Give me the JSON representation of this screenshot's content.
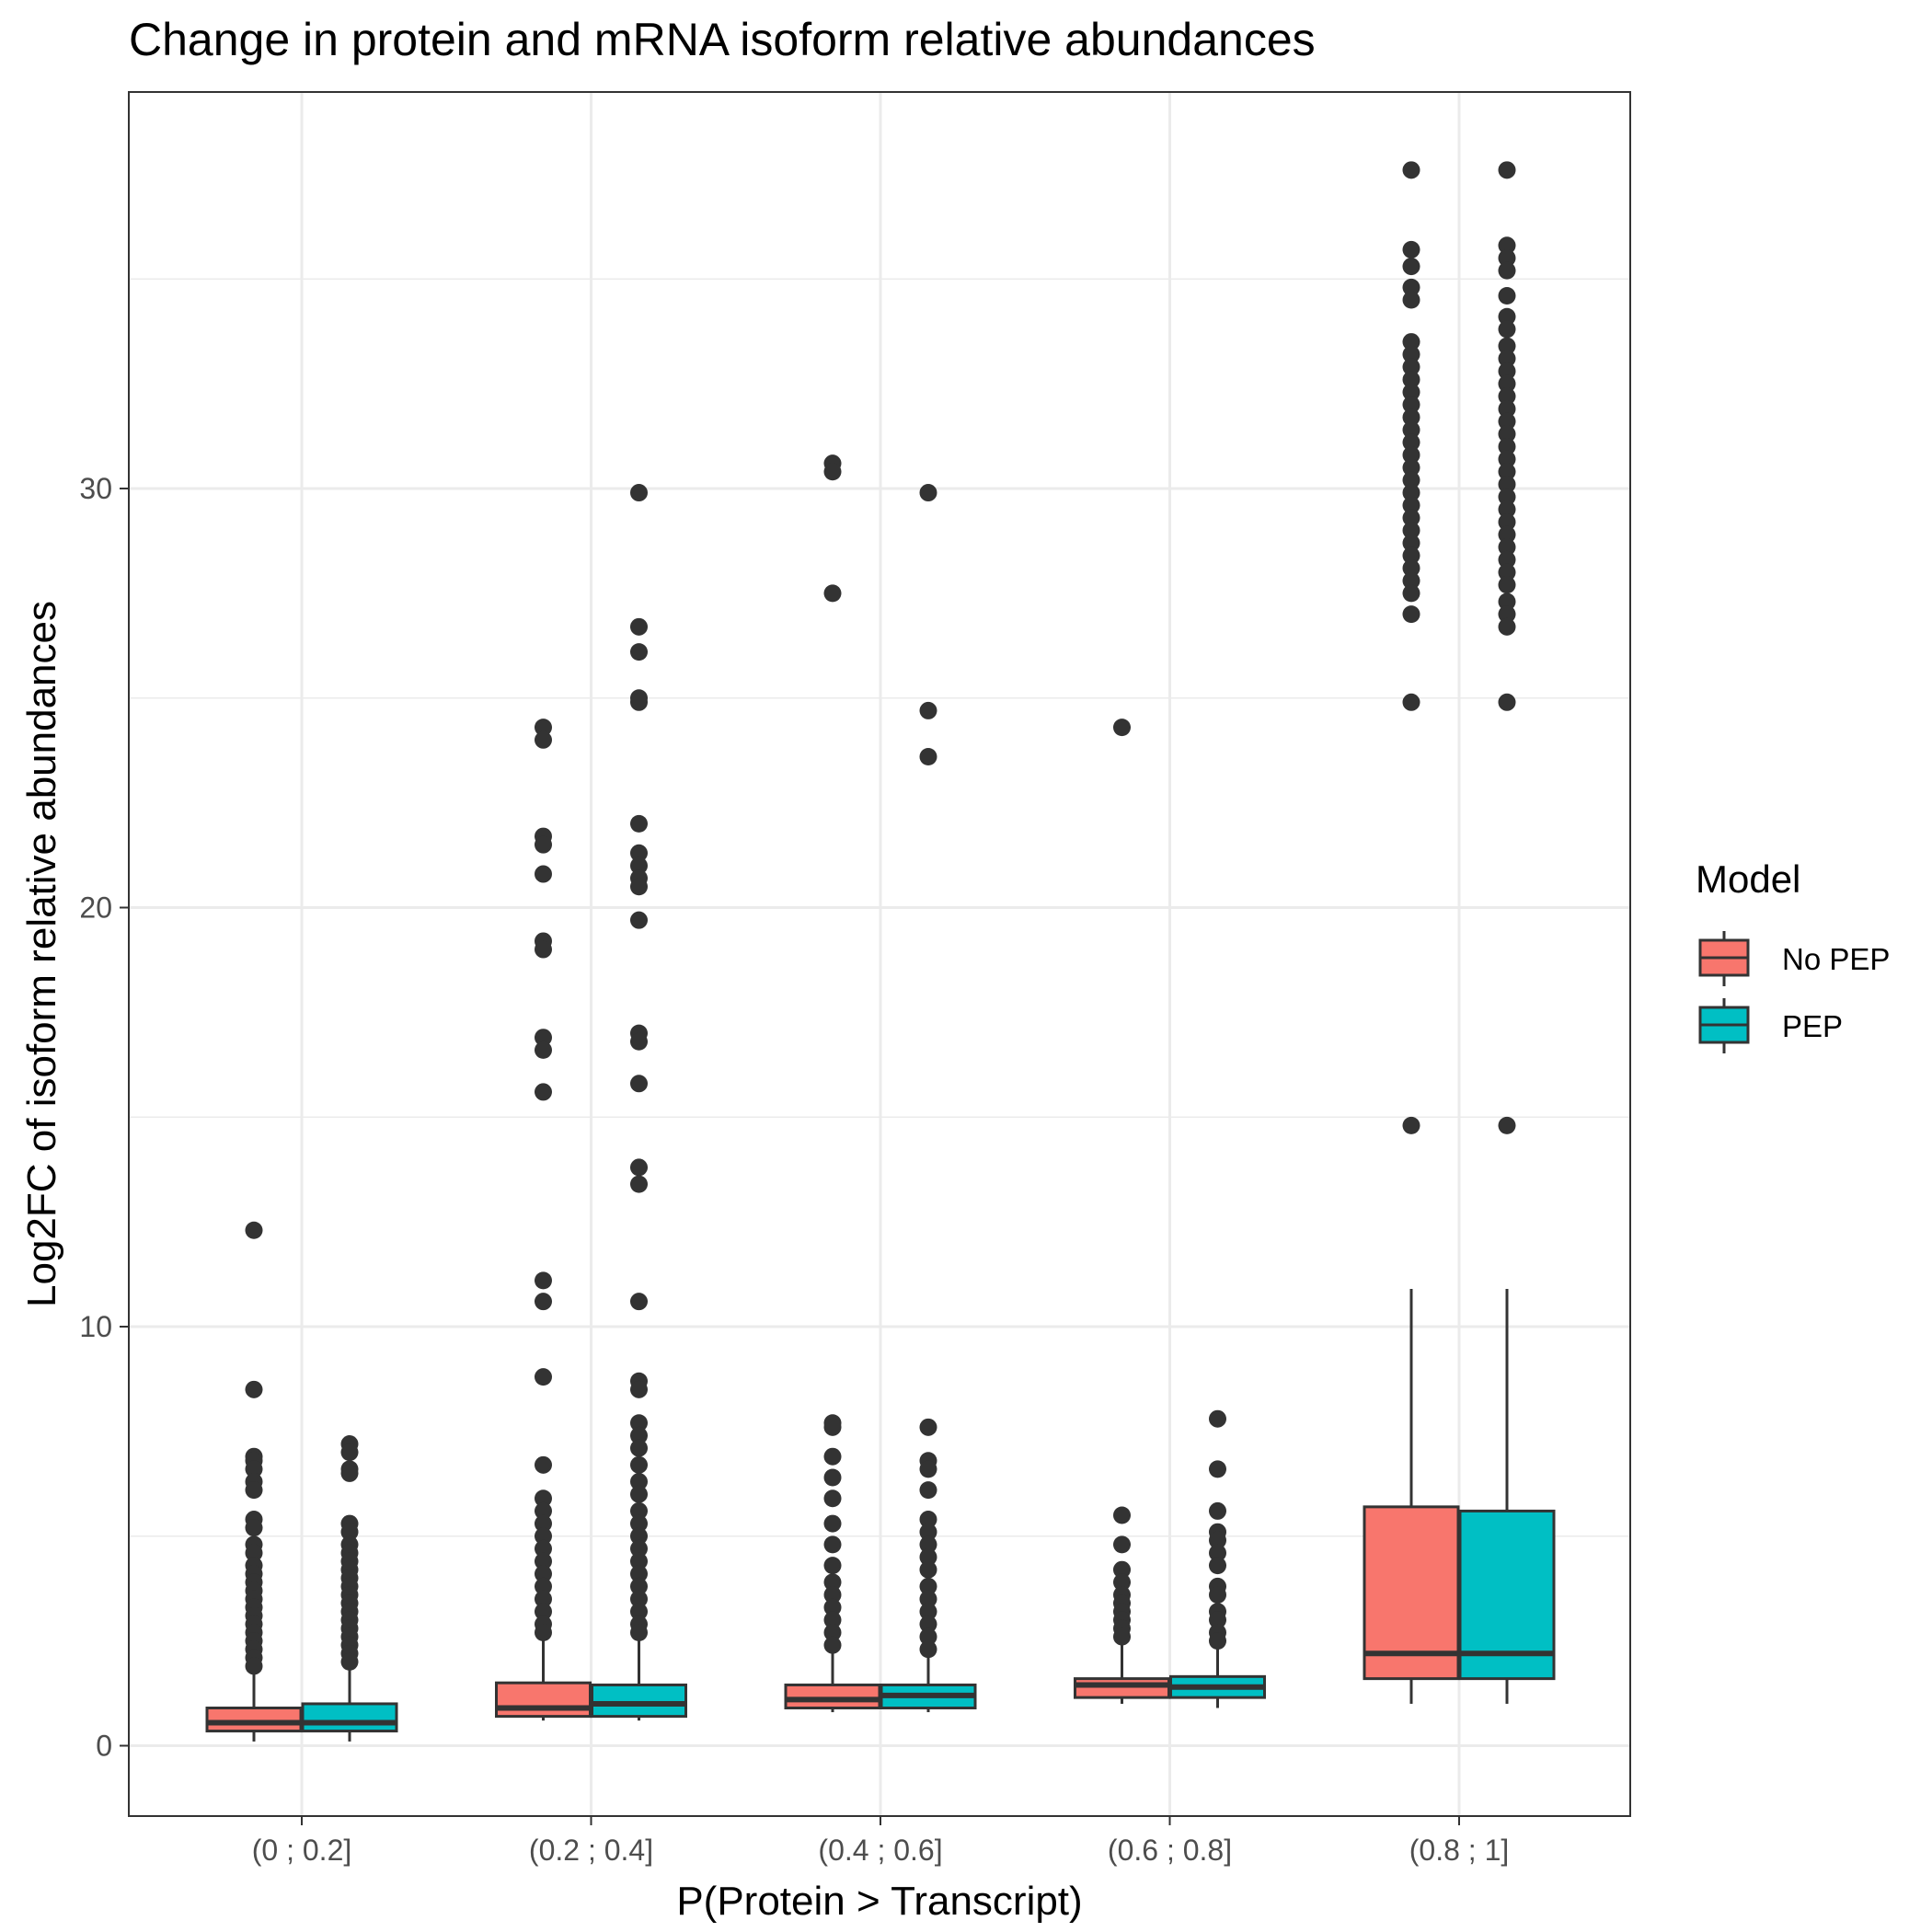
{
  "chart_data": {
    "type": "boxplot",
    "title": "Change in protein and mRNA isoform relative abundances",
    "xlabel": "P(Protein > Transcript)",
    "ylabel": "Log2FC of isoform relative abundances",
    "ylim": [
      -1.5,
      39.5
    ],
    "yticks": [
      0,
      10,
      20,
      30
    ],
    "grid": true,
    "legend_position": "right",
    "legend_title": "Model",
    "categories": [
      "(0 ; 0.2]",
      "(0.2 ; 0.4]",
      "(0.4 ; 0.6]",
      "(0.6 ; 0.8]",
      "(0.8 ; 1]"
    ],
    "series": [
      {
        "name": "No PEP",
        "color": "#F8766D",
        "boxes": [
          {
            "whisker_low": 0.1,
            "q1": 0.35,
            "median": 0.55,
            "q3": 0.9,
            "whisker_high": 1.8,
            "outliers": [
              12.3,
              8.5,
              6.9,
              6.8,
              6.6,
              6.3,
              6.1,
              5.4,
              5.2,
              4.8,
              4.6,
              4.3,
              4.1,
              3.9,
              3.7,
              3.5,
              3.3,
              3.1,
              2.9,
              2.7,
              2.5,
              2.3,
              2.1,
              1.9
            ]
          },
          {
            "whisker_low": 0.6,
            "q1": 0.7,
            "median": 0.9,
            "q3": 1.5,
            "whisker_high": 2.6,
            "outliers": [
              24.3,
              24.0,
              21.7,
              21.5,
              20.8,
              19.2,
              19.0,
              16.9,
              16.6,
              15.6,
              11.1,
              10.6,
              8.8,
              6.7,
              5.9,
              5.6,
              5.3,
              5.0,
              4.7,
              4.4,
              4.1,
              3.8,
              3.5,
              3.2,
              2.9,
              2.7
            ]
          },
          {
            "whisker_low": 0.8,
            "q1": 0.9,
            "median": 1.1,
            "q3": 1.45,
            "whisker_high": 2.2,
            "outliers": [
              30.6,
              30.4,
              27.5,
              7.7,
              7.6,
              6.9,
              6.4,
              5.9,
              5.3,
              4.8,
              4.3,
              3.9,
              3.6,
              3.3,
              3.0,
              2.7,
              2.4
            ]
          },
          {
            "whisker_low": 1.0,
            "q1": 1.15,
            "median": 1.45,
            "q3": 1.6,
            "whisker_high": 2.4,
            "outliers": [
              24.3,
              5.5,
              4.8,
              4.2,
              3.9,
              3.6,
              3.4,
              3.2,
              3.0,
              2.8,
              2.6
            ]
          },
          {
            "whisker_low": 1.0,
            "q1": 1.6,
            "median": 2.2,
            "q3": 5.7,
            "whisker_high": 10.9,
            "outliers": [
              37.6,
              35.7,
              35.3,
              34.8,
              34.5,
              33.5,
              33.2,
              32.9,
              32.6,
              32.3,
              32.0,
              31.7,
              31.4,
              31.1,
              30.8,
              30.5,
              30.2,
              29.9,
              29.6,
              29.3,
              29.0,
              28.7,
              28.4,
              28.1,
              27.8,
              27.5,
              27.0,
              24.9,
              14.8
            ]
          }
        ]
      },
      {
        "name": "PEP",
        "color": "#00BFC4",
        "boxes": [
          {
            "whisker_low": 0.1,
            "q1": 0.35,
            "median": 0.55,
            "q3": 1.0,
            "whisker_high": 1.9,
            "outliers": [
              7.2,
              7.0,
              6.6,
              6.5,
              5.3,
              5.1,
              4.8,
              4.6,
              4.4,
              4.2,
              4.0,
              3.8,
              3.6,
              3.4,
              3.2,
              3.0,
              2.8,
              2.6,
              2.4,
              2.2,
              2.0
            ]
          },
          {
            "whisker_low": 0.6,
            "q1": 0.7,
            "median": 1.0,
            "q3": 1.45,
            "whisker_high": 2.6,
            "outliers": [
              29.9,
              26.7,
              26.1,
              25.0,
              24.9,
              22.0,
              21.3,
              21.0,
              20.7,
              20.5,
              19.7,
              17.0,
              16.8,
              15.8,
              13.8,
              13.4,
              10.6,
              8.7,
              8.5,
              7.7,
              7.4,
              7.1,
              6.7,
              6.3,
              6.0,
              5.6,
              5.3,
              5.0,
              4.7,
              4.4,
              4.1,
              3.8,
              3.5,
              3.2,
              2.9,
              2.7
            ]
          },
          {
            "whisker_low": 0.8,
            "q1": 0.9,
            "median": 1.2,
            "q3": 1.45,
            "whisker_high": 2.1,
            "outliers": [
              29.9,
              24.7,
              23.6,
              7.6,
              6.8,
              6.6,
              6.1,
              5.4,
              5.1,
              4.8,
              4.5,
              4.2,
              3.8,
              3.5,
              3.2,
              2.9,
              2.6,
              2.3
            ]
          },
          {
            "whisker_low": 0.9,
            "q1": 1.15,
            "median": 1.4,
            "q3": 1.65,
            "whisker_high": 2.4,
            "outliers": [
              7.8,
              6.6,
              5.6,
              5.1,
              4.9,
              4.6,
              4.3,
              3.8,
              3.6,
              3.2,
              3.0,
              2.7,
              2.5
            ]
          },
          {
            "whisker_low": 1.0,
            "q1": 1.6,
            "median": 2.2,
            "q3": 5.6,
            "whisker_high": 10.9,
            "outliers": [
              37.6,
              35.8,
              35.5,
              35.2,
              34.6,
              34.1,
              33.8,
              33.4,
              33.1,
              32.8,
              32.5,
              32.2,
              31.9,
              31.6,
              31.3,
              31.0,
              30.7,
              30.4,
              30.1,
              29.8,
              29.5,
              29.2,
              28.9,
              28.6,
              28.3,
              28.0,
              27.7,
              27.3,
              27.0,
              26.7,
              24.9,
              14.8
            ]
          }
        ]
      }
    ]
  }
}
